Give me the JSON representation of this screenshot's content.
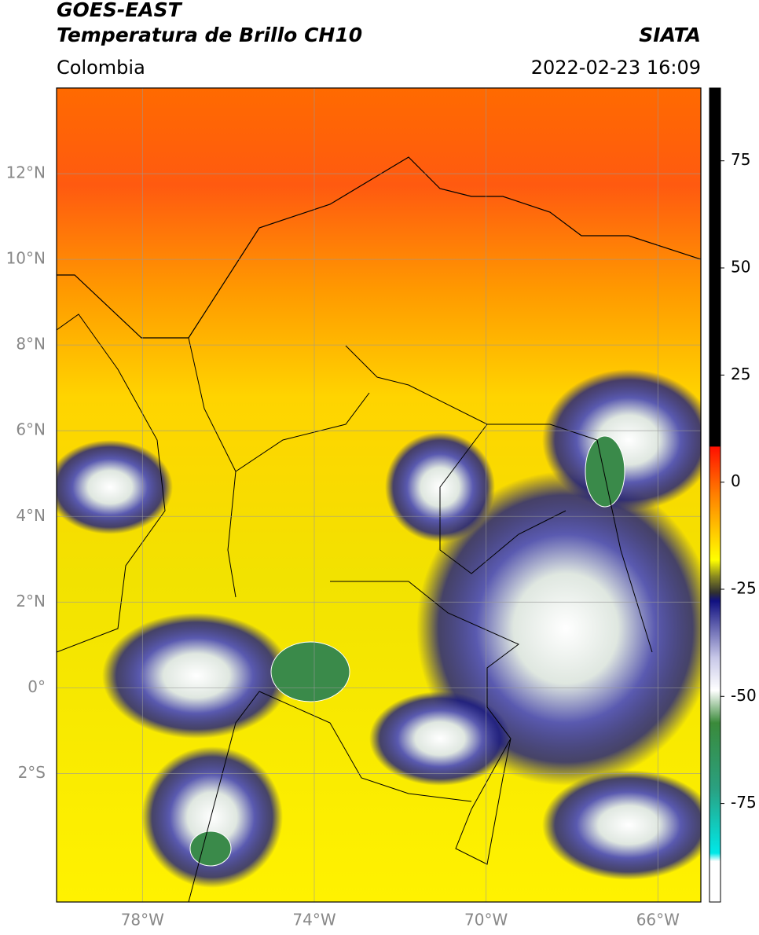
{
  "header": {
    "title_1": "GOES-EAST",
    "title_2": "Temperatura de Brillo CH10",
    "region": "Colombia",
    "source": "SIATA",
    "datetime": "2022-02-23 16:09"
  },
  "map": {
    "xlim": [
      -80,
      -65
    ],
    "ylim": [
      -5,
      14
    ],
    "xticks": [
      {
        "value": -78,
        "label": "78°W"
      },
      {
        "value": -74,
        "label": "74°W"
      },
      {
        "value": -70,
        "label": "70°W"
      },
      {
        "value": -66,
        "label": "66°W"
      }
    ],
    "yticks": [
      {
        "value": 12,
        "label": "12°N"
      },
      {
        "value": 10,
        "label": "10°N"
      },
      {
        "value": 8,
        "label": "8°N"
      },
      {
        "value": 6,
        "label": "6°N"
      },
      {
        "value": 4,
        "label": "4°N"
      },
      {
        "value": 2,
        "label": "2°N"
      },
      {
        "value": 0,
        "label": "0°"
      },
      {
        "value": -2,
        "label": "2°S"
      }
    ],
    "grid": true
  },
  "colorbar": {
    "lim": [
      -98,
      92
    ],
    "ticks": [
      75,
      50,
      25,
      0,
      -25,
      -50,
      -75
    ]
  }
}
